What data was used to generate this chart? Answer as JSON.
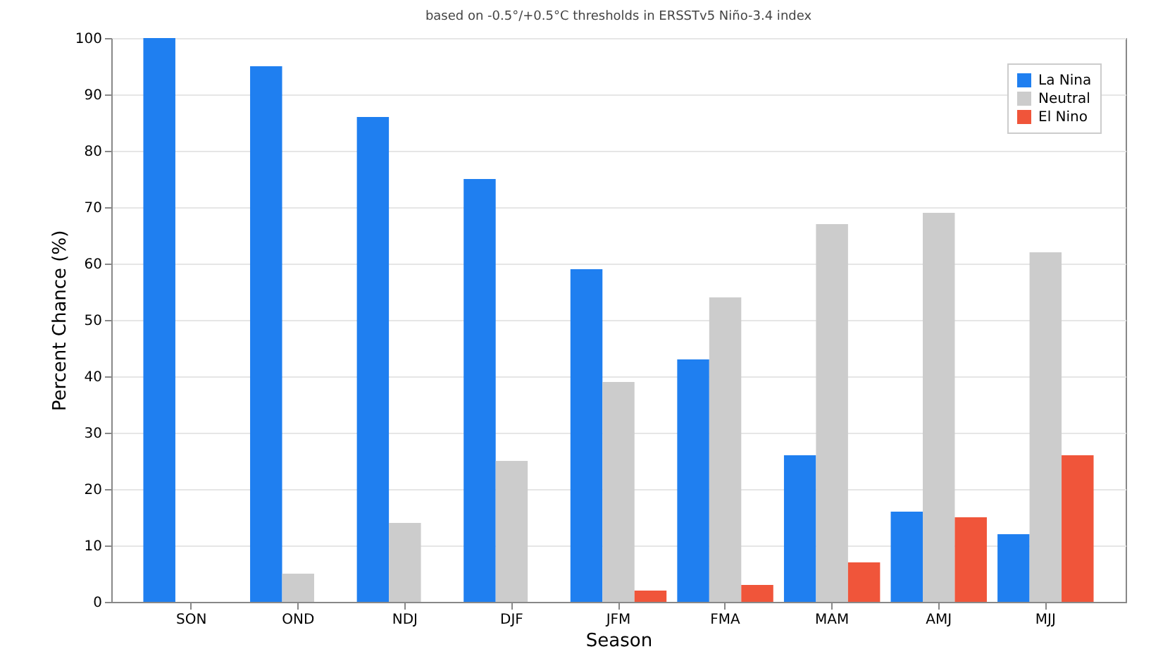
{
  "chart_data": {
    "type": "bar",
    "title": "based on -0.5°/+0.5°C thresholds in ERSSTv5 Niño-3.4 index",
    "xlabel": "Season",
    "ylabel": "Percent Chance (%)",
    "categories": [
      "SON",
      "OND",
      "NDJ",
      "DJF",
      "JFM",
      "FMA",
      "MAM",
      "AMJ",
      "MJJ"
    ],
    "series": [
      {
        "name": "La Nina",
        "color": "#1f7ff0",
        "values": [
          100,
          95,
          86,
          75,
          59,
          43,
          26,
          16,
          12
        ]
      },
      {
        "name": "Neutral",
        "color": "#cccccc",
        "values": [
          0,
          5,
          14,
          25,
          39,
          54,
          67,
          69,
          62
        ]
      },
      {
        "name": "El Nino",
        "color": "#f0553a",
        "values": [
          0,
          0,
          0,
          0,
          2,
          3,
          7,
          15,
          26
        ]
      }
    ],
    "ylim": [
      0,
      100
    ],
    "yticks": [
      0,
      10,
      20,
      30,
      40,
      50,
      60,
      70,
      80,
      90,
      100
    ],
    "grid": "y",
    "legend": "top right"
  }
}
